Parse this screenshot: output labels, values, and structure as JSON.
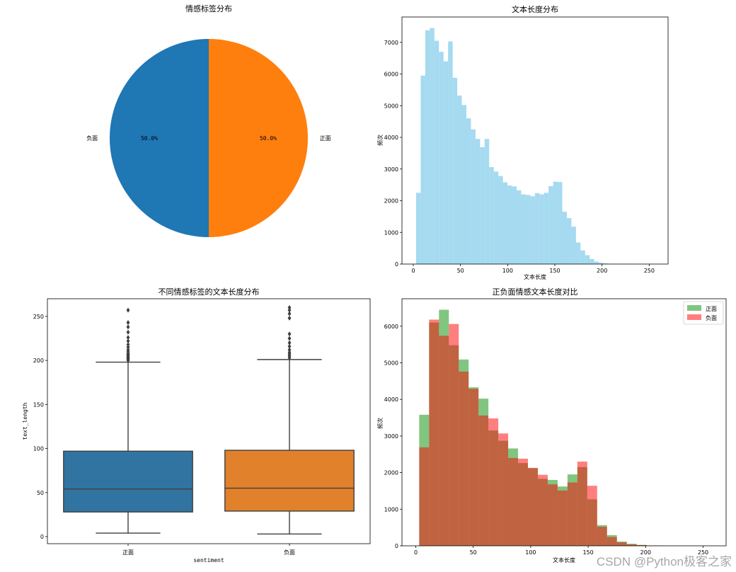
{
  "watermark": "CSDN @Python极客之家",
  "chart_data": [
    {
      "type": "pie",
      "title": "情感标签分布",
      "labels": [
        "负面",
        "正面"
      ],
      "values": [
        50.0,
        50.0
      ],
      "pct_labels": [
        "50.0%",
        "50.0%"
      ],
      "colors": [
        "#1f77b4",
        "#ff7f0e"
      ]
    },
    {
      "type": "bar",
      "title": "文本长度分布",
      "xlabel": "文本长度",
      "ylabel": "频次",
      "xlim": [
        -12,
        270
      ],
      "ylim": [
        0,
        7800
      ],
      "xticks": [
        0,
        50,
        100,
        150,
        200,
        250
      ],
      "yticks": [
        0,
        1000,
        2000,
        3000,
        4000,
        5000,
        6000,
        7000
      ],
      "bin_start": 3,
      "bin_width": 4.84,
      "values": [
        2250,
        5950,
        7380,
        7450,
        7050,
        6700,
        6400,
        7030,
        5880,
        5320,
        5020,
        4600,
        4250,
        3950,
        3690,
        3950,
        3060,
        2920,
        2780,
        2580,
        2480,
        2450,
        2330,
        2200,
        2180,
        2140,
        2240,
        2200,
        2250,
        2460,
        2600,
        2590,
        1650,
        1450,
        1180,
        680,
        430,
        280,
        160,
        80,
        40,
        20,
        12,
        8,
        5,
        5,
        4,
        4,
        3,
        3,
        2,
        2,
        2,
        2
      ],
      "color": "#87ceeb"
    },
    {
      "type": "box",
      "title": "不同情感标签的文本长度分布",
      "xlabel": "sentiment",
      "ylabel": "text_length",
      "ylim": [
        -8,
        270
      ],
      "yticks": [
        0,
        50,
        100,
        150,
        200,
        250
      ],
      "categories": [
        "正面",
        "负面"
      ],
      "boxes": [
        {
          "name": "正面",
          "min": 4,
          "q1": 28,
          "median": 54,
          "q3": 97,
          "max": 198,
          "outliers": [
            200,
            201,
            202,
            203,
            204,
            205,
            206,
            207,
            208,
            210,
            212,
            215,
            218,
            222,
            226,
            232,
            238,
            243,
            257
          ],
          "color": "#3274a1"
        },
        {
          "name": "负面",
          "min": 3,
          "q1": 29,
          "median": 55,
          "q3": 98,
          "max": 201,
          "outliers": [
            203,
            205,
            207,
            209,
            212,
            216,
            220,
            225,
            230,
            248,
            253,
            257,
            260
          ],
          "color": "#e1812c"
        }
      ]
    },
    {
      "type": "bar",
      "title": "正负面情感文本长度对比",
      "xlabel": "文本长度",
      "ylabel": "频次",
      "xlim": [
        -12,
        270
      ],
      "ylim": [
        0,
        6750
      ],
      "xticks": [
        0,
        50,
        100,
        150,
        200,
        250
      ],
      "yticks": [
        0,
        1000,
        2000,
        3000,
        4000,
        5000,
        6000
      ],
      "bin_start": 3,
      "bin_width": 8.6,
      "legend": "top-right",
      "series": [
        {
          "name": "正面",
          "color": "#2ca02c",
          "alpha": 0.6,
          "values": [
            3580,
            6100,
            6450,
            5480,
            5090,
            4330,
            4020,
            3150,
            2870,
            2660,
            2260,
            2120,
            1830,
            1800,
            1620,
            1950,
            2150,
            1270,
            565,
            290,
            115,
            55,
            25,
            10,
            5,
            3,
            2,
            2,
            1,
            1
          ]
        },
        {
          "name": "负面",
          "color": "#ff0000",
          "alpha": 0.5,
          "values": [
            2690,
            6180,
            5740,
            6060,
            4760,
            4290,
            3560,
            3480,
            3070,
            2400,
            2380,
            2130,
            1940,
            1680,
            1510,
            1730,
            2300,
            1640,
            520,
            240,
            95,
            40,
            20,
            8,
            5,
            3,
            2,
            1,
            1,
            1
          ]
        }
      ]
    }
  ]
}
